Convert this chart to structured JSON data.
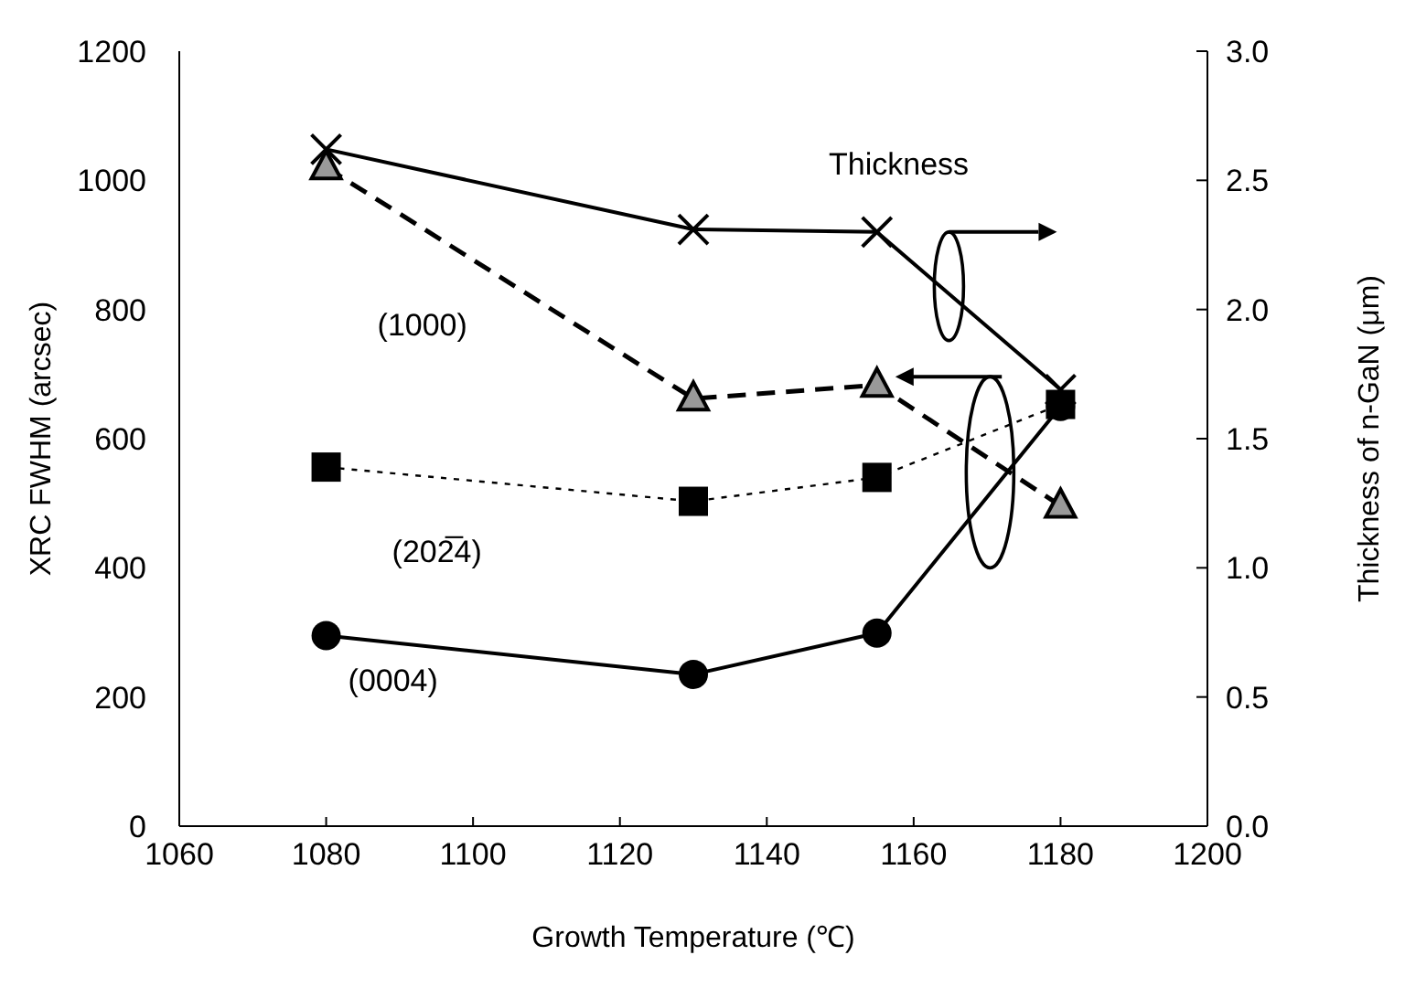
{
  "chart_data": {
    "type": "line",
    "xlabel": "Growth Temperature (℃)",
    "ylabel": "XRC FWHM (arcsec)",
    "y2label": "Thickness of n-GaN (μm)",
    "xlim": [
      1060,
      1200
    ],
    "xticks": [
      1060,
      1080,
      1100,
      1120,
      1140,
      1160,
      1180,
      1200
    ],
    "ylim": [
      0,
      1200
    ],
    "yticks": [
      0,
      200,
      400,
      600,
      800,
      1000,
      1200
    ],
    "y2lim": [
      0,
      3
    ],
    "y2ticks": [
      {
        "value": 0,
        "label": "0.0"
      },
      {
        "value": 0.5,
        "label": "0.5"
      },
      {
        "value": 1,
        "label": "1.0"
      },
      {
        "value": 1.5,
        "label": "1.5"
      },
      {
        "value": 2,
        "label": "2.0"
      },
      {
        "value": 2.5,
        "label": "2.5"
      },
      {
        "value": 3,
        "label": "3.0"
      }
    ],
    "series": [
      {
        "name": "(0004)",
        "color": "#000000",
        "x": [
          1080,
          1130,
          1155,
          1180
        ],
        "values": [
          295,
          235,
          299,
          650
        ],
        "marker": "circle",
        "line_style": "solid"
      },
      {
        "name": "(202̅4)",
        "color": "#000000",
        "x": [
          1080,
          1130,
          1155,
          1180
        ],
        "values": [
          556,
          503,
          540,
          653
        ],
        "marker": "square",
        "line_style": "dotted"
      },
      {
        "name": "(1000)",
        "color": "#000000",
        "x": [
          1080,
          1130,
          1155,
          1180
        ],
        "values": [
          1020,
          662,
          683,
          496
        ],
        "marker": "triangle",
        "line_style": "dashed"
      },
      {
        "name": "Thickness",
        "color": "#000000",
        "axis": "y2",
        "x": [
          1080,
          1130,
          1155,
          1180
        ],
        "values": [
          2.62,
          2.31,
          2.3,
          1.69
        ],
        "marker": "cross",
        "line_style": "solid"
      }
    ]
  }
}
